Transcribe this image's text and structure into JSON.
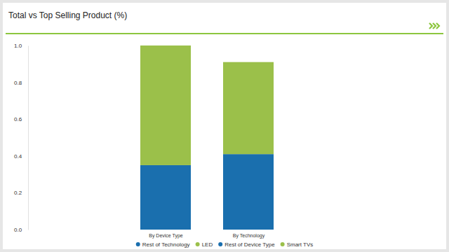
{
  "chart_data": {
    "type": "bar",
    "title": "Total vs Top Selling Product (%)",
    "categories": [
      "By Device Type",
      "By Technology"
    ],
    "series": [
      {
        "name": "Rest of Technology",
        "color": "#1a6fae",
        "values": [
          null,
          0.41
        ]
      },
      {
        "name": "LED",
        "color": "#9bc04a",
        "values": [
          null,
          0.5
        ]
      },
      {
        "name": "Rest of Device Type",
        "color": "#1a6fae",
        "values": [
          0.35,
          null
        ]
      },
      {
        "name": "Smart TVs",
        "color": "#9bc04a",
        "values": [
          0.65,
          null
        ]
      }
    ],
    "stacked": true,
    "ylim": [
      0,
      1
    ],
    "yticks": [
      {
        "value": 0,
        "label": "0.0"
      },
      0.2,
      0.4,
      0.6,
      0.8,
      {
        "value": 1,
        "label": "1.0"
      }
    ],
    "grid": false,
    "legend": "bottom"
  }
}
